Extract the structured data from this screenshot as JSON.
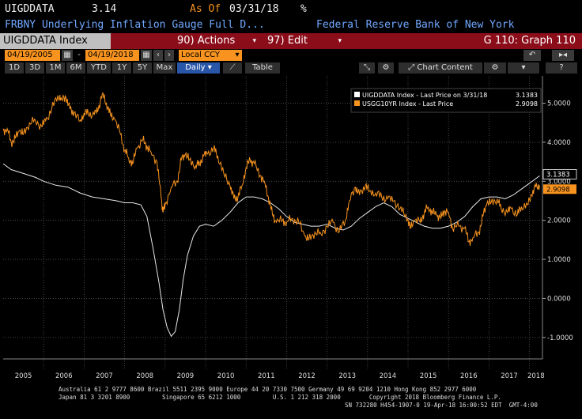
{
  "header": {
    "ticker": "UIGDDATA",
    "value": "3.14",
    "as_of_label": "As Of",
    "as_of_date": "03/31/18",
    "unit": "%",
    "name": "FRBNY Underlying Inflation Gauge Full D...",
    "source": "Federal Reserve Bank of New York"
  },
  "toolbar": {
    "security": "UIGDDATA Index",
    "actions_label": "90) Actions",
    "edit_label": "97) Edit",
    "graph_label": "G 110: Graph 110"
  },
  "dates": {
    "start": "04/19/2005",
    "end": "04/19/2018",
    "currency": "Local CCY"
  },
  "chart_content_label": "Chart Content",
  "ranges": [
    "1D",
    "3D",
    "1M",
    "6M",
    "YTD",
    "1Y",
    "5Y",
    "Max"
  ],
  "frequency": "Daily",
  "table_label": "Table",
  "colors": {
    "uig": "#e8e8e8",
    "ust": "#f7931e",
    "grid": "#555555",
    "bg": "#000000"
  },
  "chart_data": {
    "type": "line",
    "legend": [
      {
        "name": "UIGDDATA Index - Last Price on 3/31/18",
        "value": "3.1383",
        "color": "#ffffff"
      },
      {
        "name": "USGG10YR Index - Last Price",
        "value": "2.9098",
        "color": "#f7931e"
      }
    ],
    "legend_position": "top-right",
    "x_labels": [
      "2005",
      "2006",
      "2007",
      "2008",
      "2009",
      "2010",
      "2011",
      "2012",
      "2013",
      "2014",
      "2015",
      "2016",
      "2017",
      "2018"
    ],
    "x_range": [
      2005.0,
      2018.32
    ],
    "y_ticks": [
      "-1.0000",
      "0.0000",
      "1.0000",
      "2.0000",
      "3.0000",
      "4.0000",
      "5.0000"
    ],
    "y_range": [
      -1.55,
      5.7
    ],
    "last_labels": {
      "uig": "3.1383",
      "ust": "2.9098"
    },
    "grid": true,
    "series": [
      {
        "name": "UIGDDATA Index",
        "points": [
          [
            2005.0,
            3.45
          ],
          [
            2005.2,
            3.3
          ],
          [
            2005.5,
            3.2
          ],
          [
            2005.8,
            3.1
          ],
          [
            2006.0,
            3.0
          ],
          [
            2006.3,
            2.9
          ],
          [
            2006.6,
            2.85
          ],
          [
            2006.9,
            2.7
          ],
          [
            2007.2,
            2.6
          ],
          [
            2007.5,
            2.55
          ],
          [
            2007.8,
            2.5
          ],
          [
            2008.0,
            2.45
          ],
          [
            2008.2,
            2.45
          ],
          [
            2008.4,
            2.4
          ],
          [
            2008.55,
            2.1
          ],
          [
            2008.7,
            1.3
          ],
          [
            2008.85,
            0.4
          ],
          [
            2008.95,
            -0.3
          ],
          [
            2009.05,
            -0.75
          ],
          [
            2009.15,
            -0.97
          ],
          [
            2009.25,
            -0.85
          ],
          [
            2009.35,
            -0.3
          ],
          [
            2009.45,
            0.5
          ],
          [
            2009.55,
            1.1
          ],
          [
            2009.7,
            1.6
          ],
          [
            2009.85,
            1.85
          ],
          [
            2010.0,
            1.9
          ],
          [
            2010.2,
            1.85
          ],
          [
            2010.4,
            2.0
          ],
          [
            2010.6,
            2.2
          ],
          [
            2010.8,
            2.45
          ],
          [
            2011.0,
            2.6
          ],
          [
            2011.2,
            2.6
          ],
          [
            2011.4,
            2.55
          ],
          [
            2011.6,
            2.45
          ],
          [
            2011.8,
            2.3
          ],
          [
            2012.0,
            2.1
          ],
          [
            2012.2,
            1.95
          ],
          [
            2012.4,
            1.9
          ],
          [
            2012.6,
            1.85
          ],
          [
            2012.8,
            1.85
          ],
          [
            2013.0,
            1.9
          ],
          [
            2013.2,
            1.8
          ],
          [
            2013.4,
            1.75
          ],
          [
            2013.6,
            1.85
          ],
          [
            2013.8,
            2.05
          ],
          [
            2014.0,
            2.2
          ],
          [
            2014.2,
            2.35
          ],
          [
            2014.4,
            2.45
          ],
          [
            2014.6,
            2.35
          ],
          [
            2014.8,
            2.15
          ],
          [
            2015.0,
            2.05
          ],
          [
            2015.2,
            1.95
          ],
          [
            2015.4,
            1.85
          ],
          [
            2015.6,
            1.8
          ],
          [
            2015.8,
            1.8
          ],
          [
            2016.0,
            1.85
          ],
          [
            2016.2,
            1.95
          ],
          [
            2016.4,
            2.1
          ],
          [
            2016.6,
            2.35
          ],
          [
            2016.8,
            2.55
          ],
          [
            2017.0,
            2.6
          ],
          [
            2017.2,
            2.6
          ],
          [
            2017.4,
            2.55
          ],
          [
            2017.6,
            2.65
          ],
          [
            2017.8,
            2.8
          ],
          [
            2018.0,
            2.95
          ],
          [
            2018.25,
            3.14
          ]
        ]
      },
      {
        "name": "USGG10YR Index",
        "points": [
          [
            2005.0,
            4.3
          ],
          [
            2005.1,
            4.35
          ],
          [
            2005.2,
            4.0
          ],
          [
            2005.3,
            4.1
          ],
          [
            2005.4,
            4.3
          ],
          [
            2005.5,
            4.2
          ],
          [
            2005.65,
            4.5
          ],
          [
            2005.8,
            4.55
          ],
          [
            2005.95,
            4.4
          ],
          [
            2006.05,
            4.55
          ],
          [
            2006.2,
            4.85
          ],
          [
            2006.35,
            5.2
          ],
          [
            2006.45,
            5.1
          ],
          [
            2006.55,
            5.15
          ],
          [
            2006.65,
            4.85
          ],
          [
            2006.75,
            4.75
          ],
          [
            2006.9,
            4.55
          ],
          [
            2007.0,
            4.75
          ],
          [
            2007.1,
            4.75
          ],
          [
            2007.25,
            4.7
          ],
          [
            2007.35,
            4.85
          ],
          [
            2007.45,
            5.25
          ],
          [
            2007.55,
            5.0
          ],
          [
            2007.65,
            4.7
          ],
          [
            2007.75,
            4.6
          ],
          [
            2007.9,
            4.2
          ],
          [
            2008.0,
            3.8
          ],
          [
            2008.1,
            3.6
          ],
          [
            2008.2,
            3.45
          ],
          [
            2008.3,
            3.85
          ],
          [
            2008.45,
            4.05
          ],
          [
            2008.55,
            3.9
          ],
          [
            2008.65,
            3.75
          ],
          [
            2008.8,
            3.5
          ],
          [
            2008.9,
            2.6
          ],
          [
            2008.95,
            2.2
          ],
          [
            2009.0,
            2.4
          ],
          [
            2009.15,
            2.85
          ],
          [
            2009.3,
            3.0
          ],
          [
            2009.4,
            3.55
          ],
          [
            2009.5,
            3.7
          ],
          [
            2009.6,
            3.55
          ],
          [
            2009.75,
            3.4
          ],
          [
            2009.85,
            3.45
          ],
          [
            2009.95,
            3.65
          ],
          [
            2010.05,
            3.7
          ],
          [
            2010.2,
            3.85
          ],
          [
            2010.3,
            3.65
          ],
          [
            2010.45,
            3.2
          ],
          [
            2010.6,
            2.9
          ],
          [
            2010.7,
            2.55
          ],
          [
            2010.8,
            2.6
          ],
          [
            2010.9,
            2.9
          ],
          [
            2011.0,
            3.35
          ],
          [
            2011.1,
            3.55
          ],
          [
            2011.2,
            3.45
          ],
          [
            2011.35,
            3.15
          ],
          [
            2011.45,
            3.0
          ],
          [
            2011.55,
            2.6
          ],
          [
            2011.65,
            2.15
          ],
          [
            2011.75,
            1.95
          ],
          [
            2011.9,
            2.0
          ],
          [
            2012.0,
            1.95
          ],
          [
            2012.15,
            2.05
          ],
          [
            2012.3,
            1.95
          ],
          [
            2012.45,
            1.6
          ],
          [
            2012.55,
            1.5
          ],
          [
            2012.7,
            1.7
          ],
          [
            2012.85,
            1.65
          ],
          [
            2013.0,
            1.85
          ],
          [
            2013.15,
            1.95
          ],
          [
            2013.3,
            1.7
          ],
          [
            2013.45,
            2.0
          ],
          [
            2013.55,
            2.5
          ],
          [
            2013.7,
            2.85
          ],
          [
            2013.8,
            2.65
          ],
          [
            2013.95,
            2.9
          ],
          [
            2014.05,
            2.75
          ],
          [
            2014.2,
            2.7
          ],
          [
            2014.35,
            2.6
          ],
          [
            2014.5,
            2.55
          ],
          [
            2014.65,
            2.5
          ],
          [
            2014.8,
            2.3
          ],
          [
            2014.95,
            2.15
          ],
          [
            2015.05,
            1.8
          ],
          [
            2015.15,
            2.0
          ],
          [
            2015.3,
            1.95
          ],
          [
            2015.4,
            2.2
          ],
          [
            2015.5,
            2.35
          ],
          [
            2015.6,
            2.2
          ],
          [
            2015.7,
            2.15
          ],
          [
            2015.8,
            2.05
          ],
          [
            2015.9,
            2.25
          ],
          [
            2016.0,
            2.2
          ],
          [
            2016.1,
            1.8
          ],
          [
            2016.25,
            1.85
          ],
          [
            2016.4,
            1.8
          ],
          [
            2016.5,
            1.45
          ],
          [
            2016.6,
            1.55
          ],
          [
            2016.75,
            1.7
          ],
          [
            2016.85,
            2.1
          ],
          [
            2016.95,
            2.45
          ],
          [
            2017.05,
            2.45
          ],
          [
            2017.2,
            2.55
          ],
          [
            2017.3,
            2.3
          ],
          [
            2017.45,
            2.2
          ],
          [
            2017.55,
            2.3
          ],
          [
            2017.7,
            2.15
          ],
          [
            2017.8,
            2.35
          ],
          [
            2017.95,
            2.4
          ],
          [
            2018.05,
            2.65
          ],
          [
            2018.15,
            2.85
          ],
          [
            2018.25,
            2.9
          ]
        ]
      }
    ]
  },
  "footer": {
    "line1": "Australia 61 2 9777 8600 Brazil 5511 2395 9000 Europe 44 20 7330 7500 Germany 49 69 9204 1210 Hong Kong 852 2977 6000",
    "line2": "Japan 81 3 3201 8900         Singapore 65 6212 1000         U.S. 1 212 318 2000        Copyright 2018 Bloomberg Finance L.P.",
    "line3": "SN 732280 H454-1907-0 19-Apr-18 16:00:52 EDT  GMT-4:00"
  }
}
